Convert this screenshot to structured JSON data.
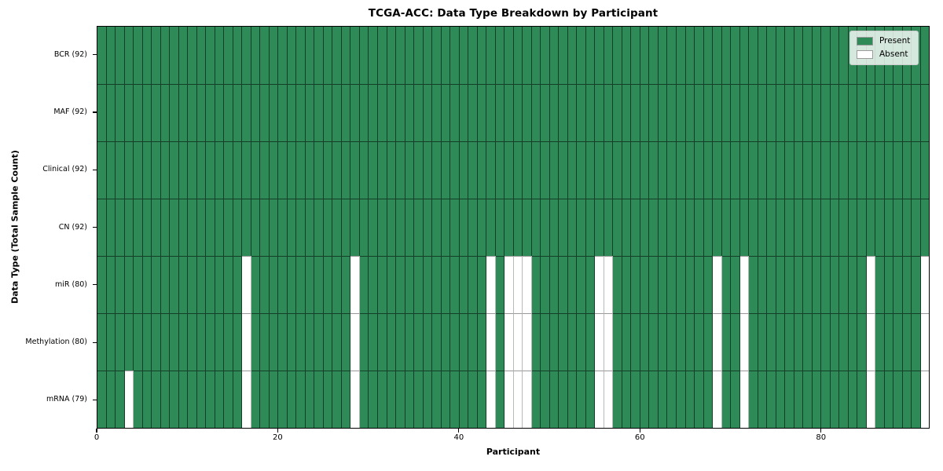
{
  "title": "TCGA-ACC: Data Type Breakdown by Participant",
  "x_axis": {
    "label": "Participant",
    "ticks": [
      0,
      20,
      40,
      60,
      80
    ]
  },
  "y_axis": {
    "label": "Data Type (Total Sample Count)"
  },
  "legend": {
    "items": [
      {
        "label": "Present",
        "color": "#2e8b57"
      },
      {
        "label": "Absent",
        "color": "#ffffff"
      }
    ]
  },
  "colors": {
    "present": "#2e8b57",
    "absent": "#ffffff"
  },
  "chart_data": {
    "type": "heatmap",
    "title": "TCGA-ACC: Data Type Breakdown by Participant",
    "xlabel": "Participant",
    "ylabel": "Data Type (Total Sample Count)",
    "participants": 92,
    "xlim": [
      0,
      92
    ],
    "x_ticks": [
      0,
      20,
      40,
      60,
      80
    ],
    "legend_entries": [
      "Present",
      "Absent"
    ],
    "rows": [
      {
        "label": "BCR (92)",
        "data_type": "BCR",
        "present_count": 92,
        "absent_participants": []
      },
      {
        "label": "MAF (92)",
        "data_type": "MAF",
        "present_count": 92,
        "absent_participants": []
      },
      {
        "label": "Clinical (92)",
        "data_type": "Clinical",
        "present_count": 92,
        "absent_participants": []
      },
      {
        "label": "CN (92)",
        "data_type": "CN",
        "present_count": 92,
        "absent_participants": []
      },
      {
        "label": "miR (80)",
        "data_type": "miR",
        "present_count": 80,
        "absent_participants": [
          16,
          28,
          43,
          45,
          46,
          47,
          55,
          56,
          68,
          71,
          85,
          91
        ]
      },
      {
        "label": "Methylation (80)",
        "data_type": "Methylation",
        "present_count": 80,
        "absent_participants": [
          16,
          28,
          43,
          45,
          46,
          47,
          55,
          56,
          68,
          71,
          85,
          91
        ]
      },
      {
        "label": "mRNA (79)",
        "data_type": "mRNA",
        "present_count": 79,
        "absent_participants": [
          3,
          16,
          28,
          43,
          45,
          46,
          47,
          55,
          56,
          68,
          71,
          85,
          91
        ]
      }
    ]
  }
}
